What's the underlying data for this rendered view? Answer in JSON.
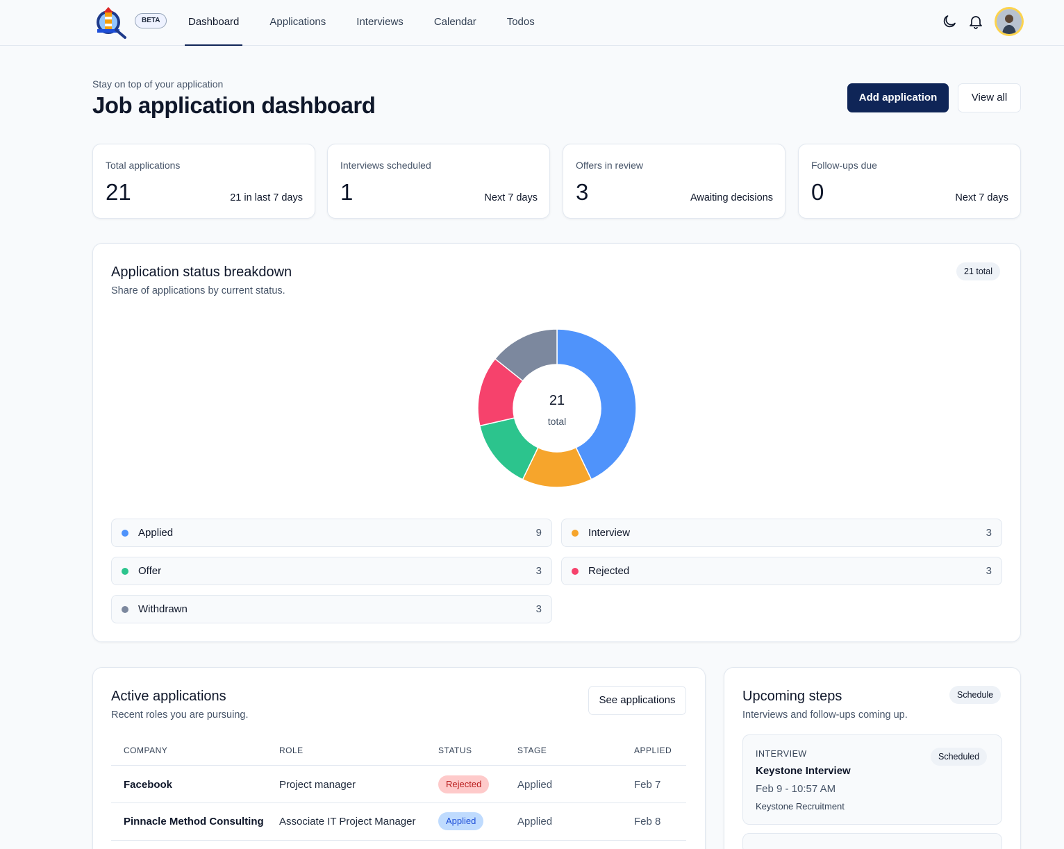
{
  "nav": {
    "beta_label": "BETA",
    "items": [
      {
        "label": "Dashboard",
        "active": true
      },
      {
        "label": "Applications",
        "active": false
      },
      {
        "label": "Interviews",
        "active": false
      },
      {
        "label": "Calendar",
        "active": false
      },
      {
        "label": "Todos",
        "active": false
      }
    ],
    "icons": [
      "moon-icon",
      "bell-icon",
      "avatar"
    ]
  },
  "header": {
    "subtitle": "Stay on top of your application",
    "title": "Job application dashboard",
    "add_button": "Add application",
    "view_all_button": "View all"
  },
  "stats": [
    {
      "label": "Total applications",
      "value": "21",
      "note": "21 in last 7 days"
    },
    {
      "label": "Interviews scheduled",
      "value": "1",
      "note": "Next 7 days"
    },
    {
      "label": "Offers in review",
      "value": "3",
      "note": "Awaiting decisions"
    },
    {
      "label": "Follow-ups due",
      "value": "0",
      "note": "Next 7 days"
    }
  ],
  "breakdown": {
    "title": "Application status breakdown",
    "subtitle": "Share of applications by current status.",
    "total_pill": "21 total",
    "center_value": "21",
    "center_label": "total",
    "legend": [
      {
        "name": "Applied",
        "count": "9",
        "color": "#4f93fb"
      },
      {
        "name": "Interview",
        "count": "3",
        "color": "#f6a52c"
      },
      {
        "name": "Offer",
        "count": "3",
        "color": "#2cc48d"
      },
      {
        "name": "Rejected",
        "count": "3",
        "color": "#f6426c"
      },
      {
        "name": "Withdrawn",
        "count": "3",
        "color": "#7c889e"
      }
    ]
  },
  "chart_data": {
    "type": "pie",
    "categories": [
      "Applied",
      "Interview",
      "Offer",
      "Rejected",
      "Withdrawn"
    ],
    "values": [
      9,
      3,
      3,
      3,
      3
    ],
    "colors": [
      "#4f93fb",
      "#f6a52c",
      "#2cc48d",
      "#f6426c",
      "#7c889e"
    ],
    "donut": true
  },
  "active": {
    "title": "Active applications",
    "subtitle": "Recent roles you are pursuing.",
    "see_button": "See applications",
    "columns": [
      "COMPANY",
      "ROLE",
      "STATUS",
      "STAGE",
      "APPLIED"
    ],
    "rows": [
      {
        "company": "Facebook",
        "role": "Project manager",
        "status": "Rejected",
        "stage": "Applied",
        "applied": "Feb 7"
      },
      {
        "company": "Pinnacle Method Consulting",
        "role": "Associate IT Project Manager",
        "status": "Applied",
        "stage": "Applied",
        "applied": "Feb 8"
      }
    ]
  },
  "upcoming": {
    "title": "Upcoming steps",
    "subtitle": "Interviews and follow-ups coming up.",
    "pill": "Schedule",
    "items": [
      {
        "type": "INTERVIEW",
        "badge": "Scheduled",
        "name": "Keystone Interview",
        "when": "Feb 9 - 10:57 AM",
        "org": "Keystone Recruitment"
      }
    ]
  }
}
